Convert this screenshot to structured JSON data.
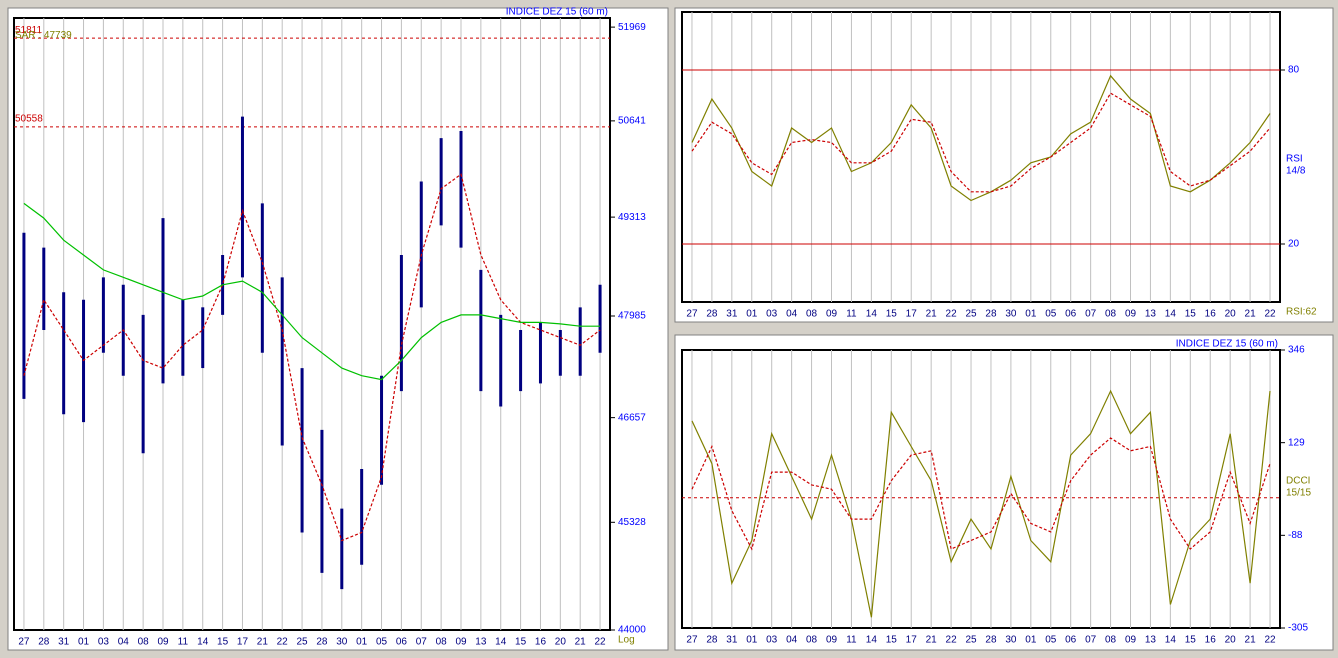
{
  "chart_data": [
    {
      "type": "hilo",
      "title": "INDICE DEZ 15 (60 m)",
      "log": true,
      "scale_label": "Log",
      "categories": [
        "27",
        "28",
        "31",
        "01",
        "03",
        "04",
        "08",
        "09",
        "11",
        "14",
        "15",
        "17",
        "21",
        "22",
        "25",
        "28",
        "30",
        "01",
        "05",
        "06",
        "07",
        "08",
        "09",
        "13",
        "14",
        "15",
        "16",
        "20",
        "21",
        "22"
      ],
      "highs": [
        49100,
        48900,
        48300,
        48200,
        48500,
        48400,
        48000,
        49300,
        48200,
        48100,
        48800,
        50700,
        49500,
        48500,
        47300,
        46500,
        45500,
        46000,
        47200,
        48800,
        49800,
        50400,
        50500,
        48600,
        48000,
        47800,
        47900,
        47800,
        48100,
        48400
      ],
      "lows": [
        46900,
        47800,
        46700,
        46600,
        47500,
        47200,
        46200,
        47100,
        47200,
        47300,
        48000,
        48500,
        47500,
        46300,
        45200,
        44700,
        44500,
        44800,
        45800,
        47000,
        48100,
        49200,
        48900,
        47000,
        46800,
        47000,
        47100,
        47200,
        47200,
        47500
      ],
      "color": "#000080",
      "lines": [
        {
          "color": "#cc0000",
          "dash": true,
          "values": [
            47200,
            48200,
            47800,
            47400,
            47600,
            47800,
            47400,
            47300,
            47600,
            47800,
            48400,
            49400,
            48700,
            47800,
            46400,
            45800,
            45100,
            45200,
            45900,
            47600,
            48800,
            49700,
            49900,
            48800,
            48200,
            47900,
            47800,
            47700,
            47600,
            47800
          ]
        },
        {
          "color": "#00c000",
          "dash": false,
          "values": [
            49500,
            49300,
            49000,
            48800,
            48600,
            48500,
            48400,
            48300,
            48200,
            48250,
            48400,
            48450,
            48300,
            48000,
            47700,
            47500,
            47300,
            47200,
            47150,
            47400,
            47700,
            47900,
            48000,
            48000,
            47950,
            47900,
            47900,
            47880,
            47850,
            47850
          ]
        }
      ],
      "hlines": [
        {
          "value": 51811,
          "label": "51811"
        },
        {
          "value": 50558,
          "label": "50558"
        }
      ],
      "sar_label": "SAR : 47739",
      "ylim": [
        44000,
        52100
      ],
      "yticks": [
        44000,
        45328,
        46657,
        47985,
        49313,
        50641,
        51969
      ]
    },
    {
      "type": "oscillator",
      "side_labels": [
        "RSI",
        "14/8"
      ],
      "corner_label": "RSI:62",
      "categories": [
        "27",
        "28",
        "31",
        "01",
        "03",
        "04",
        "08",
        "09",
        "11",
        "14",
        "15",
        "17",
        "21",
        "22",
        "25",
        "28",
        "30",
        "01",
        "05",
        "06",
        "07",
        "08",
        "09",
        "13",
        "14",
        "15",
        "16",
        "20",
        "21",
        "22"
      ],
      "lines": [
        {
          "color": "#808000",
          "dash": false,
          "values": [
            55,
            70,
            60,
            45,
            40,
            60,
            55,
            60,
            45,
            48,
            55,
            68,
            60,
            40,
            35,
            38,
            42,
            48,
            50,
            58,
            62,
            78,
            70,
            65,
            40,
            38,
            42,
            48,
            55,
            65
          ]
        },
        {
          "color": "#cc0000",
          "dash": true,
          "values": [
            52,
            62,
            58,
            48,
            44,
            55,
            56,
            55,
            48,
            48,
            52,
            63,
            62,
            45,
            38,
            38,
            40,
            46,
            50,
            55,
            60,
            72,
            68,
            64,
            45,
            40,
            42,
            47,
            52,
            60
          ]
        }
      ],
      "hlines": [
        {
          "value": 20,
          "dash": false
        },
        {
          "value": 80,
          "dash": false
        }
      ],
      "ylim": [
        0,
        100
      ],
      "yticks": [
        20,
        80
      ]
    },
    {
      "type": "oscillator",
      "title": "INDICE DEZ 15 (60 m)",
      "side_labels": [
        "DCCI",
        "15/15"
      ],
      "categories": [
        "27",
        "28",
        "31",
        "01",
        "03",
        "04",
        "08",
        "09",
        "11",
        "14",
        "15",
        "17",
        "21",
        "22",
        "25",
        "28",
        "30",
        "01",
        "05",
        "06",
        "07",
        "08",
        "09",
        "13",
        "14",
        "15",
        "16",
        "20",
        "21",
        "22"
      ],
      "lines": [
        {
          "color": "#808000",
          "dash": false,
          "values": [
            180,
            80,
            -200,
            -100,
            150,
            50,
            -50,
            100,
            -50,
            -280,
            200,
            120,
            40,
            -150,
            -50,
            -120,
            50,
            -100,
            -150,
            100,
            150,
            250,
            150,
            200,
            -250,
            -100,
            -50,
            150,
            -200,
            250
          ]
        },
        {
          "color": "#cc0000",
          "dash": true,
          "values": [
            20,
            120,
            -30,
            -120,
            60,
            60,
            30,
            20,
            -50,
            -50,
            40,
            100,
            110,
            -120,
            -100,
            -80,
            10,
            -60,
            -80,
            40,
            100,
            140,
            110,
            120,
            -50,
            -120,
            -80,
            60,
            -60,
            80
          ]
        }
      ],
      "hlines": [
        {
          "value": 0,
          "dash": true
        }
      ],
      "ylim": [
        -305,
        346
      ],
      "yticks": [
        -305,
        -88,
        129,
        346
      ]
    }
  ]
}
